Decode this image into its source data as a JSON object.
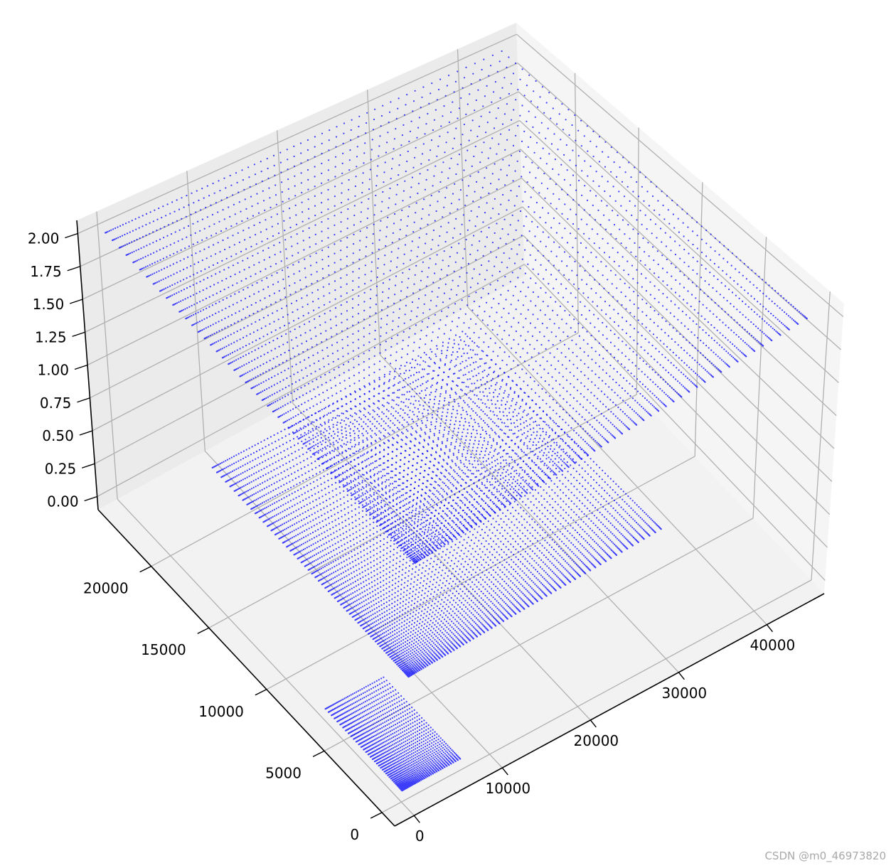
{
  "chart_data": {
    "type": "scatter",
    "dimension": "3d",
    "title": "",
    "xlabel": "",
    "ylabel": "",
    "zlabel": "",
    "grid": true,
    "marker_color": "#0000ff",
    "pane_color": "#f2f2f2",
    "grid_color": "#b0b0b0",
    "x_ticks": [
      "0",
      "10000",
      "20000",
      "30000",
      "40000"
    ],
    "x_tick_values": [
      0,
      10000,
      20000,
      30000,
      40000
    ],
    "xlim": [
      -2200,
      46500
    ],
    "y_ticks": [
      "0",
      "5000",
      "10000",
      "15000",
      "20000"
    ],
    "y_tick_values": [
      0,
      5000,
      10000,
      15000,
      20000
    ],
    "ylim": [
      -1100,
      24600
    ],
    "z_ticks": [
      "0.00",
      "0.25",
      "0.50",
      "0.75",
      "1.00",
      "1.25",
      "1.50",
      "1.75",
      "2.00"
    ],
    "z_tick_values": [
      0,
      0.25,
      0.5,
      0.75,
      1.0,
      1.25,
      1.5,
      1.75,
      2.0
    ],
    "zlim": [
      -0.1,
      2.1
    ],
    "series": [
      {
        "x_range": [
          0,
          6600
        ],
        "y_range": [
          0,
          6600
        ],
        "z": 0,
        "grid_points": 40
      },
      {
        "x_range": [
          0,
          28500
        ],
        "y_range": [
          0,
          16000
        ],
        "z": 1,
        "grid_points": 70
      },
      {
        "x_range": [
          0,
          44000
        ],
        "y_range": [
          0,
          24000
        ],
        "z": 2,
        "grid_points": 70
      }
    ]
  },
  "watermark": "CSDN @m0_46973820"
}
